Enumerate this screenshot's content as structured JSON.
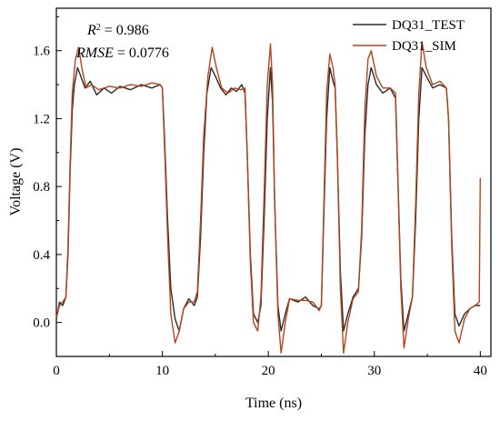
{
  "chart_data": {
    "type": "line",
    "xlabel": "Time (ns)",
    "ylabel": "Voltage (V)",
    "xlim": [
      0,
      41
    ],
    "ylim": [
      -0.2,
      1.85
    ],
    "x_ticks": [
      0,
      10,
      20,
      30,
      40
    ],
    "y_ticks": [
      0.0,
      0.4,
      0.8,
      1.2,
      1.6
    ],
    "x_tick_labels": [
      "0",
      "10",
      "20",
      "30",
      "40"
    ],
    "y_tick_labels": [
      "0.0",
      "0.4",
      "0.8",
      "1.2",
      "1.6"
    ],
    "annotations": {
      "r2_prefix": "R",
      "r2_sup": "2",
      "r2_value": " = 0.986",
      "rmse_prefix": "RMSE",
      "rmse_value": " = 0.0776"
    },
    "legend_position": "top-right",
    "series": [
      {
        "name": "DQ31_TEST",
        "color": "#2b2b2b",
        "points": [
          [
            0,
            0.02
          ],
          [
            0.3,
            0.12
          ],
          [
            0.6,
            0.1
          ],
          [
            0.9,
            0.15
          ],
          [
            1.1,
            0.4
          ],
          [
            1.3,
            0.9
          ],
          [
            1.5,
            1.25
          ],
          [
            1.7,
            1.4
          ],
          [
            2.0,
            1.5
          ],
          [
            2.3,
            1.45
          ],
          [
            2.7,
            1.38
          ],
          [
            3.2,
            1.42
          ],
          [
            3.8,
            1.34
          ],
          [
            4.5,
            1.38
          ],
          [
            5.2,
            1.35
          ],
          [
            6.0,
            1.39
          ],
          [
            7.0,
            1.37
          ],
          [
            8.0,
            1.4
          ],
          [
            9.0,
            1.38
          ],
          [
            9.8,
            1.4
          ],
          [
            10.0,
            1.38
          ],
          [
            10.2,
            1.1
          ],
          [
            10.5,
            0.6
          ],
          [
            10.8,
            0.2
          ],
          [
            11.2,
            0.02
          ],
          [
            11.6,
            -0.05
          ],
          [
            12.0,
            0.08
          ],
          [
            12.5,
            0.14
          ],
          [
            13.0,
            0.1
          ],
          [
            13.3,
            0.15
          ],
          [
            13.6,
            0.5
          ],
          [
            13.9,
            1.0
          ],
          [
            14.2,
            1.35
          ],
          [
            14.6,
            1.5
          ],
          [
            15.0,
            1.45
          ],
          [
            15.5,
            1.38
          ],
          [
            16.0,
            1.34
          ],
          [
            16.5,
            1.38
          ],
          [
            17.0,
            1.36
          ],
          [
            17.5,
            1.4
          ],
          [
            17.8,
            1.35
          ],
          [
            18.0,
            1.0
          ],
          [
            18.3,
            0.4
          ],
          [
            18.6,
            0.05
          ],
          [
            19.0,
            0.0
          ],
          [
            19.3,
            0.1
          ],
          [
            19.6,
            0.6
          ],
          [
            19.9,
            1.2
          ],
          [
            20.2,
            1.5
          ],
          [
            20.4,
            1.3
          ],
          [
            20.6,
            0.7
          ],
          [
            20.9,
            0.1
          ],
          [
            21.2,
            -0.05
          ],
          [
            21.6,
            0.05
          ],
          [
            22.0,
            0.14
          ],
          [
            22.8,
            0.12
          ],
          [
            23.5,
            0.15
          ],
          [
            24.2,
            0.1
          ],
          [
            24.8,
            0.08
          ],
          [
            25.0,
            0.1
          ],
          [
            25.2,
            0.55
          ],
          [
            25.5,
            1.2
          ],
          [
            25.8,
            1.5
          ],
          [
            26.1,
            1.42
          ],
          [
            26.3,
            1.38
          ],
          [
            26.5,
            1.0
          ],
          [
            26.8,
            0.3
          ],
          [
            27.1,
            -0.05
          ],
          [
            27.5,
            0.05
          ],
          [
            28.0,
            0.15
          ],
          [
            28.5,
            0.2
          ],
          [
            28.8,
            0.5
          ],
          [
            29.1,
            1.1
          ],
          [
            29.4,
            1.4
          ],
          [
            29.7,
            1.5
          ],
          [
            30.2,
            1.4
          ],
          [
            30.8,
            1.35
          ],
          [
            31.5,
            1.38
          ],
          [
            32.0,
            1.32
          ],
          [
            32.2,
            0.9
          ],
          [
            32.5,
            0.25
          ],
          [
            32.8,
            -0.05
          ],
          [
            33.2,
            0.05
          ],
          [
            33.6,
            0.15
          ],
          [
            33.9,
            0.6
          ],
          [
            34.2,
            1.2
          ],
          [
            34.5,
            1.5
          ],
          [
            34.9,
            1.45
          ],
          [
            35.5,
            1.38
          ],
          [
            36.2,
            1.4
          ],
          [
            36.8,
            1.38
          ],
          [
            37.0,
            1.2
          ],
          [
            37.3,
            0.5
          ],
          [
            37.6,
            0.05
          ],
          [
            38.0,
            -0.02
          ],
          [
            38.5,
            0.05
          ],
          [
            39.0,
            0.08
          ],
          [
            39.5,
            0.1
          ],
          [
            40.0,
            0.1
          ]
        ]
      },
      {
        "name": "DQ31_SIM",
        "color": "#b5451b",
        "points": [
          [
            0,
            0.03
          ],
          [
            0.3,
            0.1
          ],
          [
            0.6,
            0.12
          ],
          [
            0.9,
            0.15
          ],
          [
            1.1,
            0.45
          ],
          [
            1.3,
            0.95
          ],
          [
            1.5,
            1.35
          ],
          [
            1.8,
            1.55
          ],
          [
            2.1,
            1.62
          ],
          [
            2.4,
            1.5
          ],
          [
            2.8,
            1.38
          ],
          [
            3.3,
            1.4
          ],
          [
            4.0,
            1.37
          ],
          [
            5.0,
            1.39
          ],
          [
            6.0,
            1.38
          ],
          [
            7.0,
            1.4
          ],
          [
            8.0,
            1.39
          ],
          [
            9.0,
            1.41
          ],
          [
            9.8,
            1.4
          ],
          [
            10.0,
            1.38
          ],
          [
            10.2,
            1.05
          ],
          [
            10.5,
            0.5
          ],
          [
            10.8,
            0.05
          ],
          [
            11.2,
            -0.12
          ],
          [
            11.6,
            -0.05
          ],
          [
            12.0,
            0.08
          ],
          [
            12.5,
            0.12
          ],
          [
            13.0,
            0.12
          ],
          [
            13.3,
            0.18
          ],
          [
            13.6,
            0.6
          ],
          [
            13.9,
            1.1
          ],
          [
            14.3,
            1.45
          ],
          [
            14.7,
            1.62
          ],
          [
            15.1,
            1.5
          ],
          [
            15.6,
            1.38
          ],
          [
            16.2,
            1.35
          ],
          [
            16.8,
            1.38
          ],
          [
            17.4,
            1.37
          ],
          [
            17.8,
            1.38
          ],
          [
            18.0,
            1.0
          ],
          [
            18.3,
            0.35
          ],
          [
            18.6,
            0.0
          ],
          [
            19.0,
            -0.05
          ],
          [
            19.3,
            0.15
          ],
          [
            19.6,
            0.75
          ],
          [
            19.9,
            1.4
          ],
          [
            20.2,
            1.64
          ],
          [
            20.4,
            1.4
          ],
          [
            20.6,
            0.7
          ],
          [
            20.9,
            0.05
          ],
          [
            21.2,
            -0.18
          ],
          [
            21.6,
            0.0
          ],
          [
            22.0,
            0.14
          ],
          [
            22.8,
            0.13
          ],
          [
            23.5,
            0.13
          ],
          [
            24.2,
            0.12
          ],
          [
            24.8,
            0.07
          ],
          [
            25.0,
            0.1
          ],
          [
            25.2,
            0.6
          ],
          [
            25.5,
            1.35
          ],
          [
            25.8,
            1.58
          ],
          [
            26.1,
            1.5
          ],
          [
            26.3,
            1.4
          ],
          [
            26.5,
            1.0
          ],
          [
            26.8,
            0.2
          ],
          [
            27.1,
            -0.18
          ],
          [
            27.5,
            0.0
          ],
          [
            28.0,
            0.14
          ],
          [
            28.5,
            0.18
          ],
          [
            28.8,
            0.55
          ],
          [
            29.1,
            1.25
          ],
          [
            29.4,
            1.55
          ],
          [
            29.7,
            1.6
          ],
          [
            30.2,
            1.45
          ],
          [
            30.8,
            1.38
          ],
          [
            31.5,
            1.38
          ],
          [
            32.0,
            1.35
          ],
          [
            32.2,
            0.9
          ],
          [
            32.5,
            0.2
          ],
          [
            32.8,
            -0.15
          ],
          [
            33.2,
            0.02
          ],
          [
            33.6,
            0.15
          ],
          [
            33.9,
            0.7
          ],
          [
            34.2,
            1.35
          ],
          [
            34.5,
            1.65
          ],
          [
            34.9,
            1.5
          ],
          [
            35.5,
            1.4
          ],
          [
            36.2,
            1.42
          ],
          [
            36.8,
            1.38
          ],
          [
            37.0,
            1.2
          ],
          [
            37.3,
            0.45
          ],
          [
            37.6,
            -0.05
          ],
          [
            38.0,
            -0.12
          ],
          [
            38.5,
            0.02
          ],
          [
            39.0,
            0.08
          ],
          [
            39.5,
            0.1
          ],
          [
            39.9,
            0.12
          ],
          [
            40.0,
            0.85
          ]
        ]
      }
    ]
  }
}
